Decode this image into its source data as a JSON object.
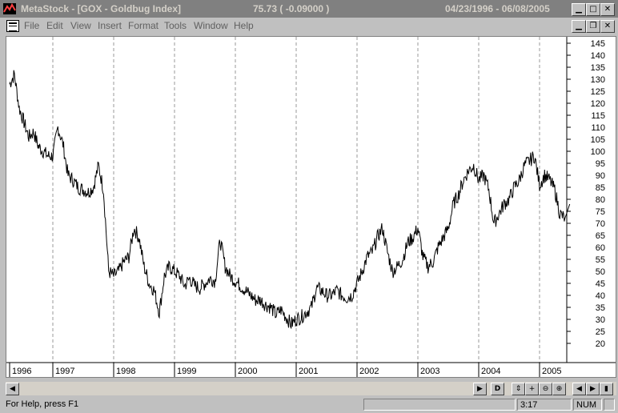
{
  "window": {
    "app_name": "MetaStock",
    "title": "MetaStock - [GOX - Goldbug Index]",
    "last_value": "75.73 ( -0.09000 )",
    "date_range": "04/23/1996 - 06/08/2005"
  },
  "menu": [
    "File",
    "Edit",
    "View",
    "Insert",
    "Format",
    "Tools",
    "Window",
    "Help"
  ],
  "status": {
    "help_text": "For Help, press F1",
    "time": "3:17",
    "mode": "NUM"
  },
  "scroll_buttons": {
    "daily": "D"
  },
  "colors": {
    "titlebar_inactive": "#808080",
    "chart_bg": "#ffffff",
    "price_line": "#000000",
    "grid": "#999999"
  },
  "chart_data": {
    "type": "line",
    "title": "GOX - Goldbug Index",
    "x_ticks": [
      "1996",
      "1997",
      "1998",
      "1999",
      "2000",
      "2001",
      "2002",
      "2003",
      "2004",
      "2005"
    ],
    "y_ticks": [
      20,
      25,
      30,
      35,
      40,
      45,
      50,
      55,
      60,
      65,
      70,
      75,
      80,
      85,
      90,
      95,
      100,
      105,
      110,
      115,
      120,
      125,
      130,
      135,
      140,
      145
    ],
    "ylim": [
      15,
      148
    ],
    "grid": "vertical dashed at year boundaries",
    "y_axis_position": "right",
    "series": [
      {
        "x": [
          "1996-04",
          "1996-05",
          "1996-06",
          "1996-07",
          "1996-08",
          "1996-09",
          "1996-10",
          "1996-11",
          "1996-12",
          "1997-01",
          "1997-02",
          "1997-03",
          "1997-04",
          "1997-05",
          "1997-06",
          "1997-07",
          "1997-08",
          "1997-09",
          "1997-10",
          "1997-11",
          "1997-12",
          "1998-01",
          "1998-02",
          "1998-03",
          "1998-04",
          "1998-05",
          "1998-06",
          "1998-07",
          "1998-08",
          "1998-09",
          "1998-10",
          "1998-11",
          "1998-12",
          "1999-01",
          "1999-02",
          "1999-03",
          "1999-04",
          "1999-05",
          "1999-06",
          "1999-07",
          "1999-08",
          "1999-09",
          "1999-10",
          "1999-11",
          "1999-12",
          "2000-01",
          "2000-02",
          "2000-03",
          "2000-04",
          "2000-05",
          "2000-06",
          "2000-07",
          "2000-08",
          "2000-09",
          "2000-10",
          "2000-11",
          "2000-12",
          "2001-01",
          "2001-02",
          "2001-03",
          "2001-04",
          "2001-05",
          "2001-06",
          "2001-07",
          "2001-08",
          "2001-09",
          "2001-10",
          "2001-11",
          "2001-12",
          "2002-01",
          "2002-02",
          "2002-03",
          "2002-04",
          "2002-05",
          "2002-06",
          "2002-07",
          "2002-08",
          "2002-09",
          "2002-10",
          "2002-11",
          "2002-12",
          "2003-01",
          "2003-02",
          "2003-03",
          "2003-04",
          "2003-05",
          "2003-06",
          "2003-07",
          "2003-08",
          "2003-09",
          "2003-10",
          "2003-11",
          "2003-12",
          "2004-01",
          "2004-02",
          "2004-03",
          "2004-04",
          "2004-05",
          "2004-06",
          "2004-07",
          "2004-08",
          "2004-09",
          "2004-10",
          "2004-11",
          "2004-12",
          "2005-01",
          "2005-02",
          "2005-03",
          "2005-04",
          "2005-05",
          "2005-06"
        ],
        "y": [
          128,
          132,
          118,
          112,
          106,
          108,
          102,
          100,
          98,
          98,
          110,
          103,
          90,
          88,
          85,
          84,
          83,
          85,
          94,
          84,
          50,
          48,
          50,
          54,
          56,
          68,
          64,
          52,
          45,
          42,
          33,
          48,
          52,
          50,
          48,
          44,
          47,
          44,
          43,
          45,
          47,
          46,
          63,
          52,
          48,
          46,
          44,
          42,
          40,
          38,
          38,
          36,
          35,
          32,
          34,
          31,
          28,
          30,
          31,
          33,
          35,
          43,
          42,
          40,
          40,
          42,
          40,
          39,
          40,
          45,
          50,
          56,
          58,
          64,
          68,
          58,
          50,
          52,
          55,
          62,
          64,
          68,
          56,
          52,
          54,
          60,
          64,
          68,
          78,
          82,
          88,
          92,
          94,
          88,
          90,
          84,
          70,
          74,
          78,
          80,
          85,
          88,
          94,
          96,
          98,
          86,
          90,
          88,
          84,
          74,
          72
        ]
      }
    ]
  }
}
